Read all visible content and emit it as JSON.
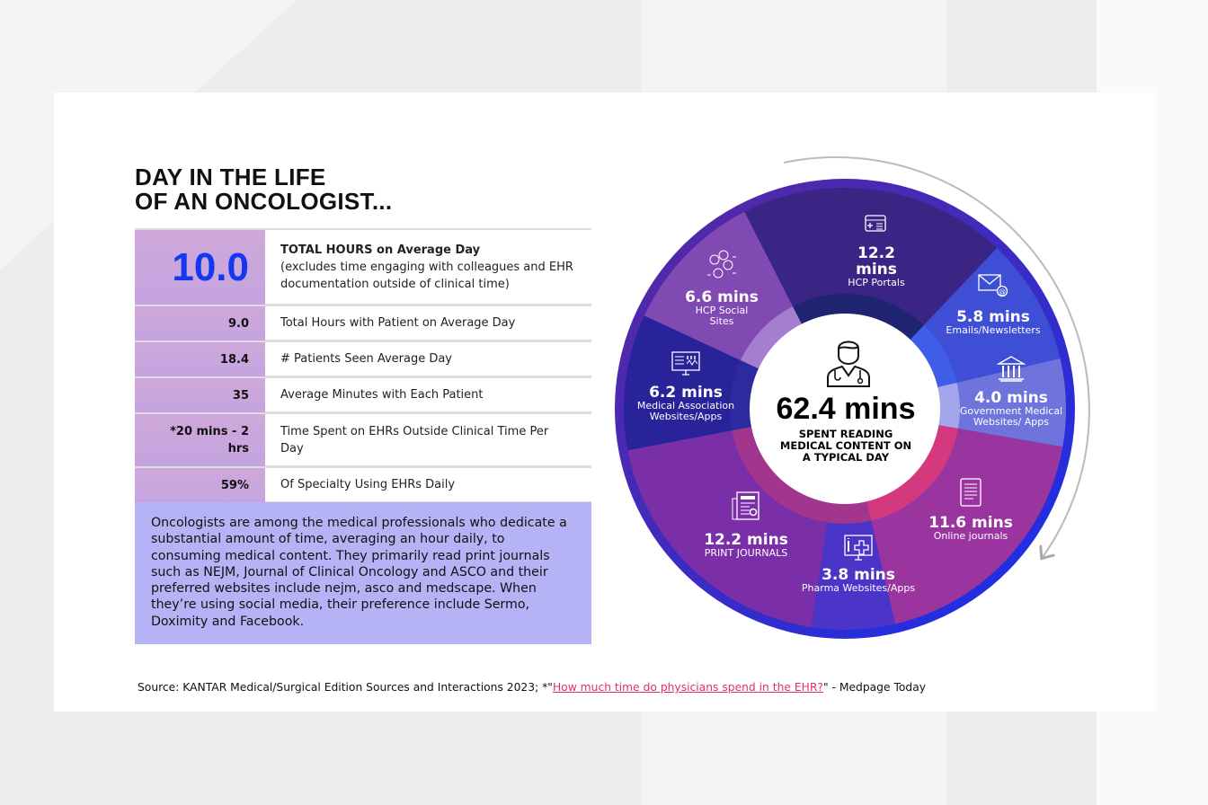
{
  "title": [
    "DAY IN THE LIFE",
    "OF AN ONCOLOGIST..."
  ],
  "stats": [
    {
      "value": "10.0",
      "label": "TOTAL HOURS on Average Day",
      "note": "(excludes time engaging with colleagues and EHR documentation outside of clinical time)"
    },
    {
      "value": "9.0",
      "label": "Total Hours with Patient on Average Day"
    },
    {
      "value": "18.4",
      "label": "# Patients Seen Average Day"
    },
    {
      "value": "35",
      "label": "Average Minutes with Each Patient"
    },
    {
      "value": "*20 mins - 2 hrs",
      "label": "Time Spent on EHRs Outside Clinical Time Per Day"
    },
    {
      "value": "59%",
      "label": "Of Specialty Using EHRs Daily"
    }
  ],
  "summary": "Oncologists are among the medical professionals who dedicate a substantial amount of time, averaging an hour daily, to consuming medical content. They primarily read print journals such as NEJM, Journal of Clinical Oncology and ASCO and their preferred websites include nejm, asco and medscape. When they’re using social media, their preference include Sermo, Doximity and Facebook.",
  "source": {
    "prefix": "Source: KANTAR Medical/Surgical Edition Sources and Interactions 2023; *\"",
    "link": "How much time do physicians spend in the EHR?",
    "suffix": "\" - Medpage Today"
  },
  "chart_data": {
    "type": "pie",
    "title": "62.4 mins",
    "subtitle": "SPENT READING MEDICAL CONTENT ON A TYPICAL DAY",
    "unit": "mins",
    "categories": [
      "HCP Portals",
      "Emails/Newsletters",
      "Government Medical Websites/ Apps",
      "Online journals",
      "Pharma Websites/Apps",
      "PRINT JOURNALS",
      "Medical Association Websites/Apps",
      "HCP Social Sites"
    ],
    "values": [
      12.2,
      5.8,
      4.0,
      11.6,
      3.8,
      12.2,
      6.2,
      6.6
    ],
    "value_labels": [
      "12.2 mins",
      "5.8 mins",
      "4.0 mins",
      "11.6 mins",
      "3.8 mins",
      "12.2 mins",
      "6.2 mins",
      "6.6 mins"
    ],
    "colors": [
      "#3a2585",
      "#3e4fd6",
      "#6f74dd",
      "#9a35a0",
      "#4a35c8",
      "#7a2fa8",
      "#29239a",
      "#8149b2"
    ],
    "inner_colors": [
      "#1e2470",
      "#3f5ee8",
      "#a3a6ea",
      "#d4397f",
      "#a2368f",
      "#a2368f",
      "#2b2a9e",
      "#a57ed0"
    ]
  }
}
